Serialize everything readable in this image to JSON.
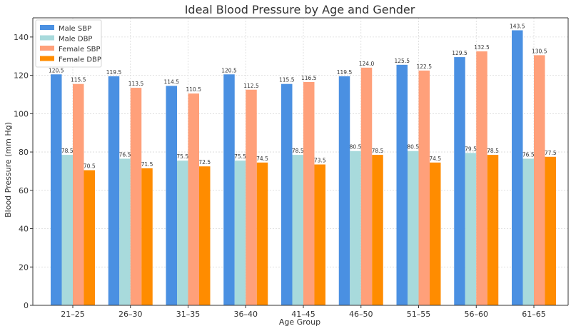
{
  "chart_data": {
    "type": "bar",
    "title": "Ideal Blood Pressure by Age and Gender",
    "xlabel": "Age Group",
    "ylabel": "Blood Pressure (mm Hg)",
    "ylim": [
      0,
      150
    ],
    "yticks": [
      0,
      20,
      40,
      60,
      80,
      100,
      120,
      140
    ],
    "grid": true,
    "legend_position": "top-left",
    "categories": [
      "21–25",
      "26–30",
      "31–35",
      "36–40",
      "41–45",
      "46–50",
      "51–55",
      "56–60",
      "61–65"
    ],
    "series": [
      {
        "name": "Male SBP",
        "color": "#4a90e2",
        "values": [
          120.5,
          119.5,
          114.5,
          120.5,
          115.5,
          119.5,
          125.5,
          129.5,
          143.5
        ],
        "labels": [
          "120.5",
          "119.5",
          "114.5",
          "120.5",
          "115.5",
          "119.5",
          "125.5",
          "129.5",
          "143.5"
        ]
      },
      {
        "name": "Male DBP",
        "color": "#a8dadc",
        "values": [
          78.5,
          76.5,
          75.5,
          75.5,
          78.5,
          80.5,
          80.5,
          79.5,
          76.5
        ],
        "labels": [
          "78.5",
          "76.5",
          "75.5",
          "75.5",
          "78.5",
          "80.5",
          "80.5",
          "79.5",
          "76.5"
        ]
      },
      {
        "name": "Female SBP",
        "color": "#ffa07a",
        "values": [
          115.5,
          113.5,
          110.5,
          112.5,
          116.5,
          124.0,
          122.5,
          132.5,
          130.5
        ],
        "labels": [
          "115.5",
          "113.5",
          "110.5",
          "112.5",
          "116.5",
          "124.0",
          "122.5",
          "132.5",
          "130.5"
        ]
      },
      {
        "name": "Female DBP",
        "color": "#ff8c00",
        "values": [
          70.5,
          71.5,
          72.5,
          74.5,
          73.5,
          78.5,
          74.5,
          78.5,
          77.5
        ],
        "labels": [
          "70.5",
          "71.5",
          "72.5",
          "74.5",
          "73.5",
          "78.5",
          "74.5",
          "78.5",
          "77.5"
        ]
      }
    ]
  }
}
